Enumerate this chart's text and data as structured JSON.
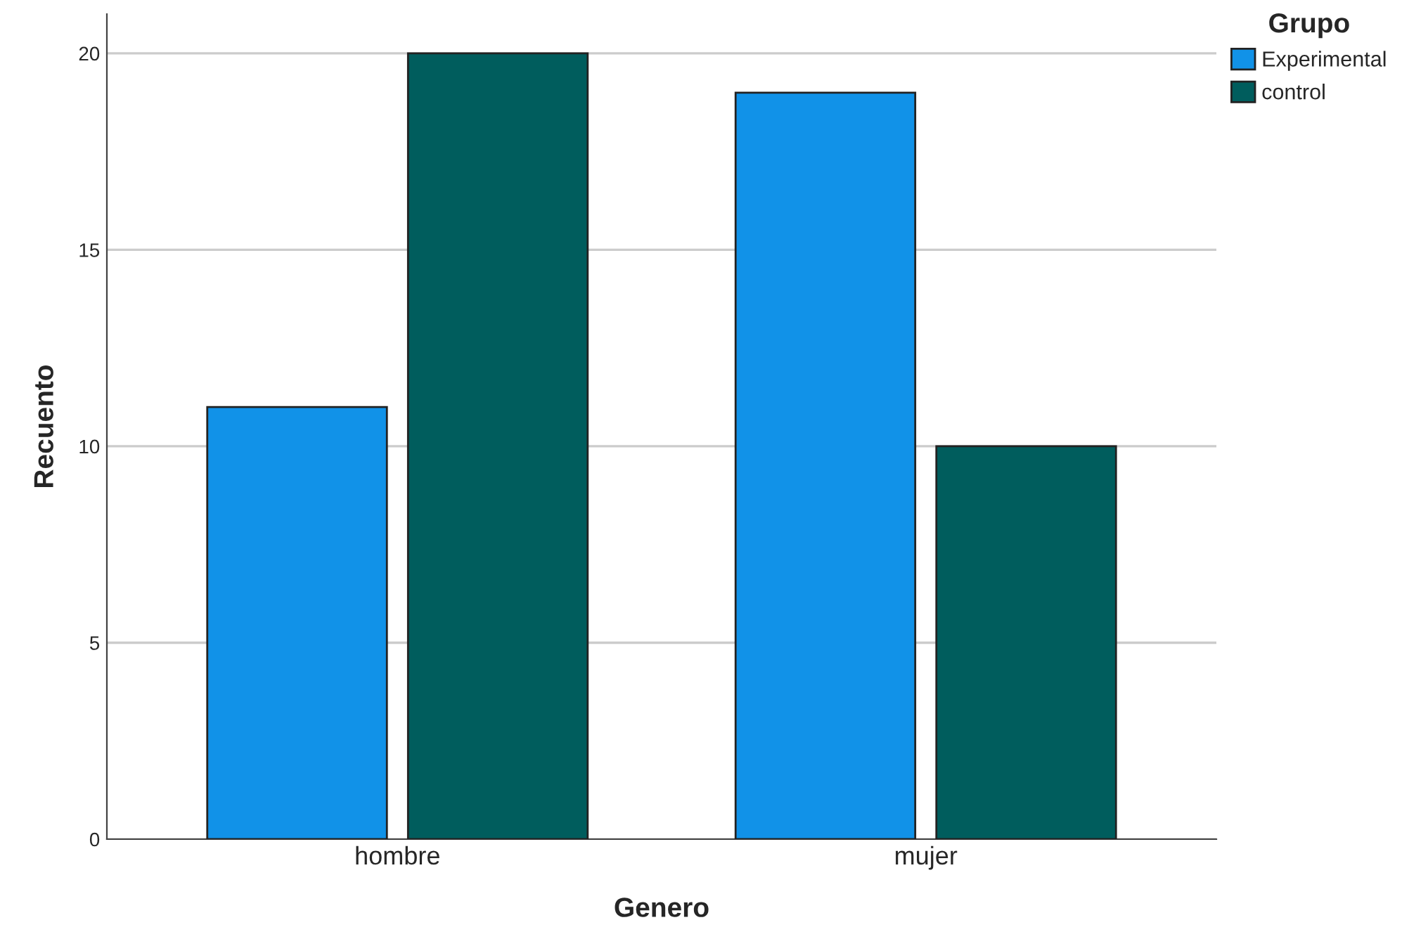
{
  "chart_data": {
    "type": "bar",
    "xlabel": "Genero",
    "ylabel": "Recuento",
    "legend_title": "Grupo",
    "categories": [
      "hombre",
      "mujer"
    ],
    "series": [
      {
        "name": "Experimental",
        "color": "#1192e8",
        "values": [
          11,
          19
        ]
      },
      {
        "name": "control",
        "color": "#005d5d",
        "values": [
          20,
          10
        ]
      }
    ],
    "ylim": [
      0,
      21
    ],
    "yticks": [
      0,
      5,
      10,
      15,
      20
    ],
    "grid": "y",
    "legend": "top right"
  }
}
